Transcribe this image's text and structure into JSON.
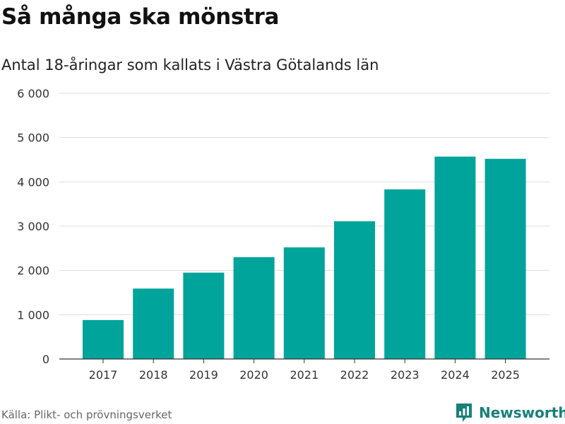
{
  "header": {
    "title": "Så många ska mönstra",
    "subtitle": "Antal 18-åringar som kallats i Västra Götalands län"
  },
  "footer": {
    "source": "Källa: Plikt- och prövningsverket",
    "brand": "Newsworthy",
    "brand_icon": "newsworthy-logo-icon"
  },
  "colors": {
    "bar": "#00a49a",
    "brand": "#17807a",
    "grid": "#dddddd",
    "axis": "#333333"
  },
  "chart_data": {
    "type": "bar",
    "title": "Så många ska mönstra",
    "subtitle": "Antal 18-åringar som kallats i Västra Götalands län",
    "xlabel": "",
    "ylabel": "",
    "categories": [
      "2017",
      "2018",
      "2019",
      "2020",
      "2021",
      "2022",
      "2023",
      "2024",
      "2025"
    ],
    "values": [
      880,
      1590,
      1950,
      2300,
      2520,
      3110,
      3830,
      4570,
      4520
    ],
    "ylim": [
      0,
      6000
    ],
    "yticks": [
      0,
      1000,
      2000,
      3000,
      4000,
      5000,
      6000
    ],
    "ytick_labels": [
      "0",
      "1 000",
      "2 000",
      "3 000",
      "4 000",
      "5 000",
      "6 000"
    ],
    "grid": true
  }
}
